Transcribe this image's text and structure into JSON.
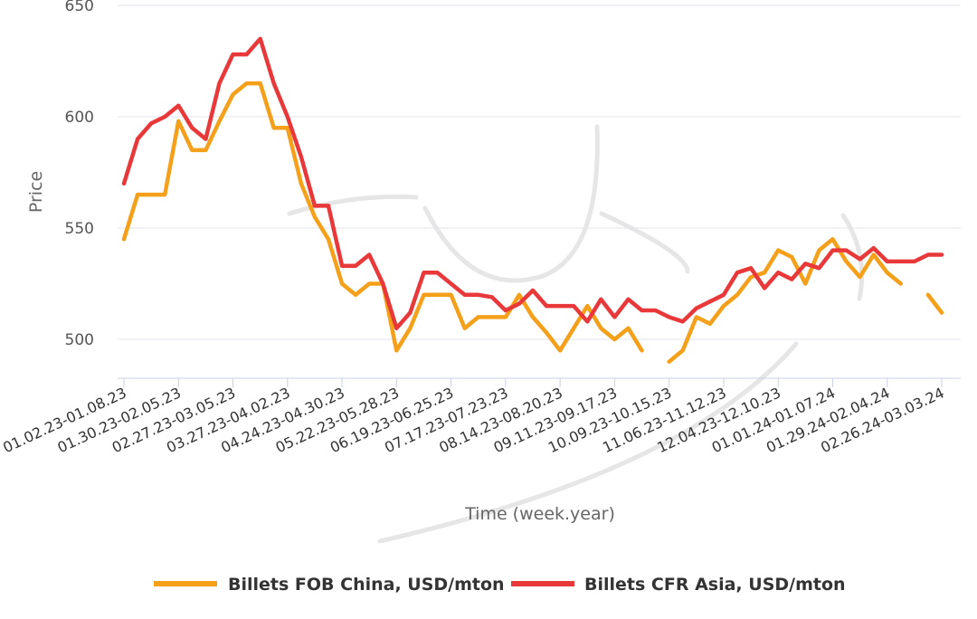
{
  "chart_data": {
    "type": "line",
    "xlabel": "Time (week.year)",
    "ylabel": "Price",
    "ylim": [
      482,
      650
    ],
    "yticks": [
      500,
      550,
      600,
      650
    ],
    "grid": "horizontal",
    "legend_position": "bottom-center",
    "x_tick_labels": [
      "01.02.23-01.08.23",
      "01.30.23-02.05.23",
      "02.27.23-03.05.23",
      "03.27.23-04.02.23",
      "04.24.23-04.30.23",
      "05.22.23-05.28.23",
      "06.19.23-06.25.23",
      "07.17.23-07.23.23",
      "08.14.23-08.20.23",
      "09.11.23-09.17.23",
      "10.09.23-10.15.23",
      "11.06.23-11.12.23",
      "12.04.23-12.10.23",
      "01.01.24-01.07.24",
      "01.29.24-02.04.24",
      "02.26.24-03.03.24"
    ],
    "x_weeks": [
      "01.02.23",
      "01.09.23",
      "01.16.23",
      "01.23.23",
      "01.30.23",
      "02.06.23",
      "02.13.23",
      "02.20.23",
      "02.27.23",
      "03.06.23",
      "03.13.23",
      "03.20.23",
      "03.27.23",
      "04.03.23",
      "04.10.23",
      "04.17.23",
      "04.24.23",
      "05.01.23",
      "05.08.23",
      "05.15.23",
      "05.22.23",
      "05.29.23",
      "06.05.23",
      "06.12.23",
      "06.19.23",
      "06.26.23",
      "07.03.23",
      "07.10.23",
      "07.17.23",
      "07.24.23",
      "07.31.23",
      "08.07.23",
      "08.14.23",
      "08.21.23",
      "08.28.23",
      "09.04.23",
      "09.11.23",
      "09.18.23",
      "09.25.23",
      "10.02.23",
      "10.09.23",
      "10.16.23",
      "10.23.23",
      "10.30.23",
      "11.06.23",
      "11.13.23",
      "11.20.23",
      "11.27.23",
      "12.04.23",
      "12.11.23",
      "12.18.23",
      "12.25.23",
      "01.01.24",
      "01.08.24",
      "01.15.24",
      "01.22.24",
      "01.29.24",
      "02.05.24",
      "02.12.24",
      "02.19.24",
      "02.26.24"
    ],
    "series": [
      {
        "name": "Billets FOB China, USD/mton",
        "color": "#f5a01a",
        "values": [
          545,
          565,
          565,
          565,
          598,
          585,
          585,
          598,
          610,
          615,
          615,
          595,
          595,
          570,
          555,
          545,
          525,
          520,
          525,
          525,
          495,
          505,
          520,
          520,
          520,
          505,
          510,
          510,
          510,
          520,
          510,
          503,
          495,
          505,
          515,
          505,
          500,
          505,
          495,
          null,
          490,
          495,
          510,
          507,
          515,
          520,
          528,
          530,
          540,
          537,
          525,
          540,
          545,
          535,
          528,
          538,
          530,
          525,
          null,
          520,
          512
        ]
      },
      {
        "name": "Billets CFR Asia, USD/mton",
        "color": "#e8383a",
        "values": [
          570,
          590,
          597,
          600,
          605,
          595,
          590,
          615,
          628,
          628,
          635,
          615,
          600,
          582,
          560,
          560,
          533,
          533,
          538,
          525,
          505,
          512,
          530,
          530,
          525,
          520,
          520,
          519,
          513,
          516,
          522,
          515,
          515,
          515,
          508,
          518,
          510,
          518,
          513,
          513,
          510,
          508,
          514,
          517,
          520,
          530,
          532,
          523,
          530,
          527,
          534,
          532,
          540,
          540,
          536,
          541,
          535,
          535,
          535,
          538,
          538
        ]
      }
    ]
  }
}
